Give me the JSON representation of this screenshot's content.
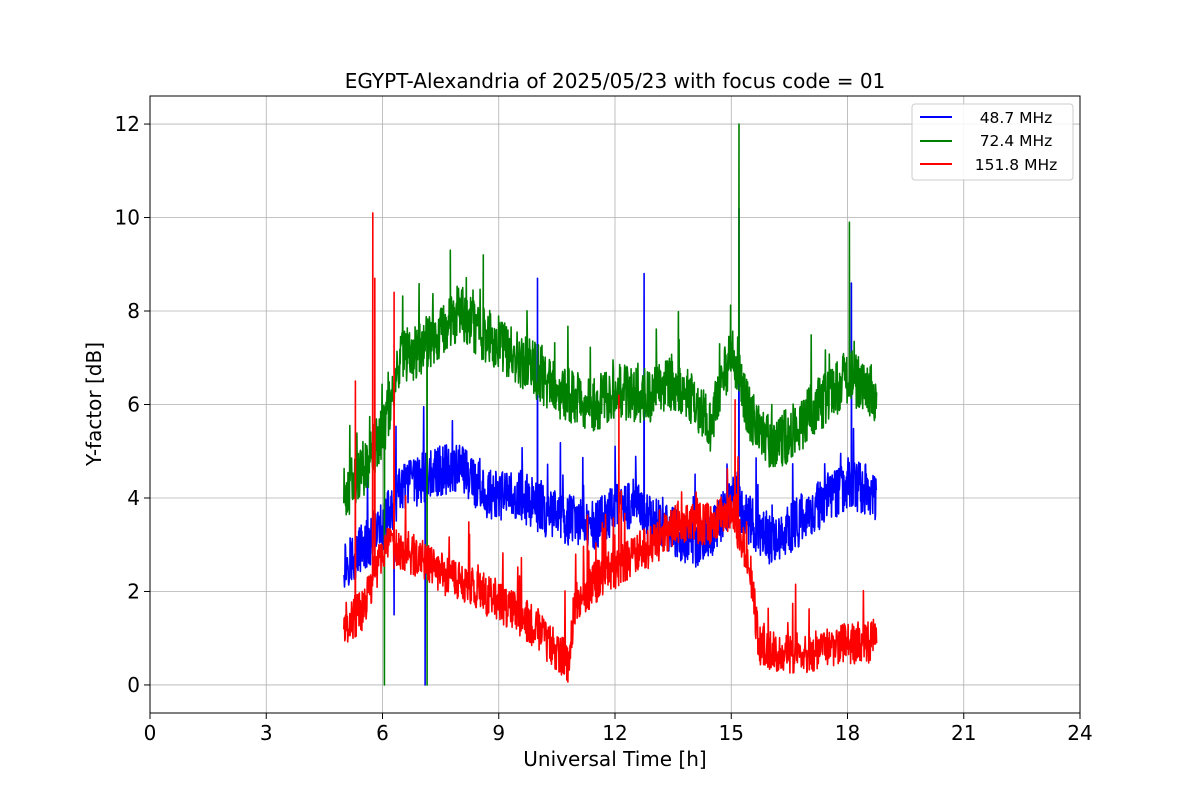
{
  "chart_data": {
    "type": "line",
    "title": "EGYPT-Alexandria of 2025/05/23 with focus code = 01",
    "xlabel": "Universal Time [h]",
    "ylabel": "Y-factor [dB]",
    "xlim": [
      0,
      24
    ],
    "ylim": [
      -0.6,
      12.6
    ],
    "xticks": [
      0,
      3,
      6,
      9,
      12,
      15,
      18,
      21,
      24
    ],
    "yticks": [
      0,
      2,
      4,
      6,
      8,
      10,
      12
    ],
    "grid": true,
    "legend_position": "top-right",
    "series": [
      {
        "name": "48.7 MHz",
        "color": "#0000ff",
        "x": [
          5.0,
          5.5,
          6.0,
          6.5,
          7.0,
          7.5,
          8.0,
          8.5,
          9.0,
          9.5,
          10.0,
          10.5,
          11.0,
          11.5,
          12.0,
          12.5,
          13.0,
          13.5,
          14.0,
          14.5,
          15.0,
          15.5,
          16.0,
          16.5,
          17.0,
          17.5,
          18.0,
          18.5,
          18.75
        ],
        "y": [
          2.6,
          2.9,
          3.4,
          4.2,
          4.4,
          4.6,
          4.7,
          4.2,
          4.0,
          4.1,
          3.8,
          3.6,
          3.5,
          3.4,
          3.8,
          3.9,
          3.5,
          3.3,
          3.0,
          3.2,
          4.0,
          3.5,
          3.1,
          3.3,
          3.7,
          4.0,
          4.3,
          4.2,
          4.0
        ],
        "spikes": [
          [
            6.3,
            1.5
          ],
          [
            7.1,
            0.0
          ],
          [
            10.0,
            8.7
          ],
          [
            12.75,
            8.8
          ],
          [
            15.2,
            10.2
          ],
          [
            18.1,
            8.6
          ]
        ]
      },
      {
        "name": "72.4 MHz",
        "color": "#008000",
        "x": [
          5.0,
          5.5,
          6.0,
          6.5,
          7.0,
          7.5,
          8.0,
          8.5,
          9.0,
          9.5,
          10.0,
          10.5,
          11.0,
          11.5,
          12.0,
          12.5,
          13.0,
          13.5,
          14.0,
          14.5,
          15.0,
          15.5,
          16.0,
          16.5,
          17.0,
          17.5,
          18.0,
          18.5,
          18.75
        ],
        "y": [
          4.1,
          4.6,
          5.4,
          7.0,
          7.2,
          7.6,
          8.0,
          7.6,
          7.3,
          7.0,
          6.7,
          6.3,
          6.1,
          6.0,
          6.3,
          6.2,
          6.2,
          6.5,
          6.1,
          5.5,
          7.2,
          5.7,
          5.2,
          5.3,
          5.8,
          6.2,
          6.6,
          6.4,
          6.2
        ],
        "spikes": [
          [
            6.05,
            0.0
          ],
          [
            7.15,
            0.0
          ],
          [
            7.75,
            9.3
          ],
          [
            8.6,
            9.2
          ],
          [
            15.2,
            12.0
          ],
          [
            18.05,
            9.9
          ]
        ]
      },
      {
        "name": "151.8 MHz",
        "color": "#ff0000",
        "x": [
          5.0,
          5.5,
          6.0,
          6.5,
          7.0,
          7.5,
          8.0,
          8.5,
          9.0,
          9.5,
          10.0,
          10.5,
          10.8,
          11.0,
          11.5,
          12.0,
          12.5,
          13.0,
          13.5,
          14.0,
          14.5,
          15.0,
          15.5,
          15.7,
          16.0,
          16.5,
          17.0,
          17.5,
          18.0,
          18.5,
          18.75
        ],
        "y": [
          1.3,
          1.6,
          2.9,
          2.9,
          2.7,
          2.4,
          2.2,
          2.0,
          1.8,
          1.5,
          1.2,
          0.7,
          0.5,
          1.8,
          2.2,
          2.5,
          2.8,
          3.0,
          3.4,
          3.5,
          3.4,
          3.8,
          2.5,
          0.9,
          0.7,
          0.7,
          0.7,
          0.8,
          0.9,
          0.9,
          1.0
        ],
        "spikes": [
          [
            5.3,
            6.5
          ],
          [
            5.75,
            10.1
          ],
          [
            5.8,
            8.7
          ],
          [
            6.3,
            8.4
          ],
          [
            12.1,
            6.2
          ],
          [
            15.1,
            6.1
          ]
        ]
      }
    ]
  }
}
